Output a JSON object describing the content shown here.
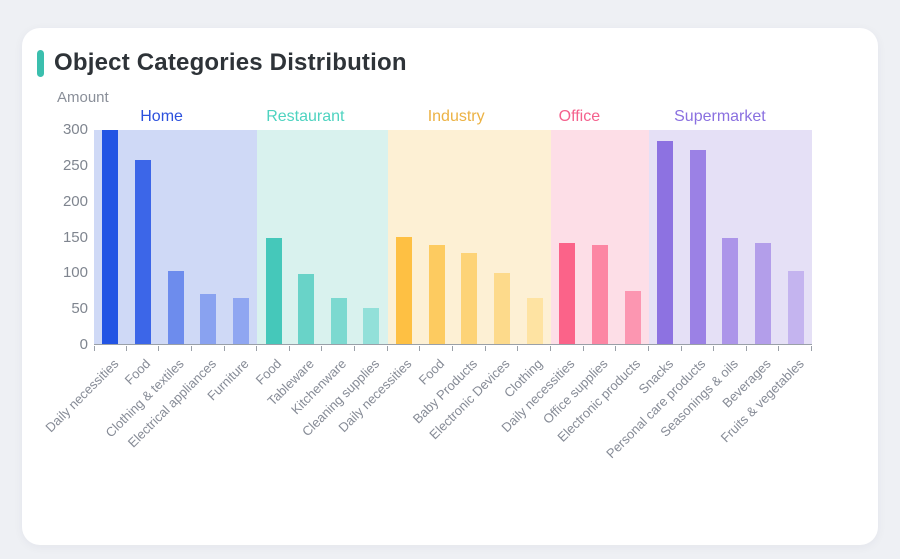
{
  "card": {
    "title": "Object Categories Distribution",
    "accent_color": "#3bbfae"
  },
  "chart_data": {
    "type": "bar",
    "title": "Object Categories Distribution",
    "ylabel": "Amount",
    "xlabel": "",
    "ylim": [
      0,
      300
    ],
    "yticks": [
      300,
      250,
      200,
      150,
      100,
      50,
      0
    ],
    "grid": false,
    "legend_position": "none",
    "axis_color": "#9aa0a8",
    "groups": [
      {
        "label": "Home",
        "label_color": "#2c51dd",
        "band_color": "#cfd9f6",
        "bars": [
          {
            "category": "Daily necessities",
            "value": 300,
            "color": "#2254e4"
          },
          {
            "category": "Food",
            "value": 258,
            "color": "#3c66e8"
          },
          {
            "category": "Clothing & textiles",
            "value": 103,
            "color": "#6d8ცed",
            "color_fix": "#6d8ced"
          },
          {
            "category": "Electrical appliances",
            "value": 70,
            "color": "#89a2f0"
          },
          {
            "category": "Furniture",
            "value": 64,
            "color": "#8fa6f1"
          }
        ]
      },
      {
        "label": "Restaurant",
        "label_color": "#4ed3c0",
        "band_color": "#d9f2ee",
        "bars": [
          {
            "category": "Food",
            "value": 148,
            "color": "#45c8ba"
          },
          {
            "category": "Tableware",
            "value": 98,
            "color": "#69d3c8"
          },
          {
            "category": "Kitchenware",
            "value": 65,
            "color": "#7cd9d0"
          },
          {
            "category": "Cleaning supplies",
            "value": 51,
            "color": "#92e0d9"
          }
        ]
      },
      {
        "label": "Industry",
        "label_color": "#ecb243",
        "band_color": "#fdf0d4",
        "bars": [
          {
            "category": "Daily necessities",
            "value": 150,
            "color": "#fec043"
          },
          {
            "category": "Food",
            "value": 139,
            "color": "#fdcb60"
          },
          {
            "category": "Baby Products",
            "value": 127,
            "color": "#fdd377"
          },
          {
            "category": "Electronic Devices",
            "value": 100,
            "color": "#fdda8b"
          },
          {
            "category": "Clothing",
            "value": 64,
            "color": "#fee3a2"
          }
        ]
      },
      {
        "label": "Office",
        "label_color": "#f4618d",
        "band_color": "#fddee7",
        "bars": [
          {
            "category": "Daily necessities",
            "value": 142,
            "color": "#fb6389"
          },
          {
            "category": "Office supplies",
            "value": 139,
            "color": "#fc86a3"
          },
          {
            "category": "Electronic products",
            "value": 75,
            "color": "#fc96b1"
          }
        ]
      },
      {
        "label": "Supermarket",
        "label_color": "#8a70e0",
        "band_color": "#e5e0f6",
        "bars": [
          {
            "category": "Snacks",
            "value": 285,
            "color": "#8d72e1"
          },
          {
            "category": "Personal care products",
            "value": 272,
            "color": "#9b81e5"
          },
          {
            "category": "Seasonings & oils",
            "value": 148,
            "color": "#ac95e9"
          },
          {
            "category": "Beverages",
            "value": 141,
            "color": "#b39eea"
          },
          {
            "category": "Fruits & vegetables",
            "value": 102,
            "color": "#c4b4ef"
          }
        ]
      }
    ]
  }
}
